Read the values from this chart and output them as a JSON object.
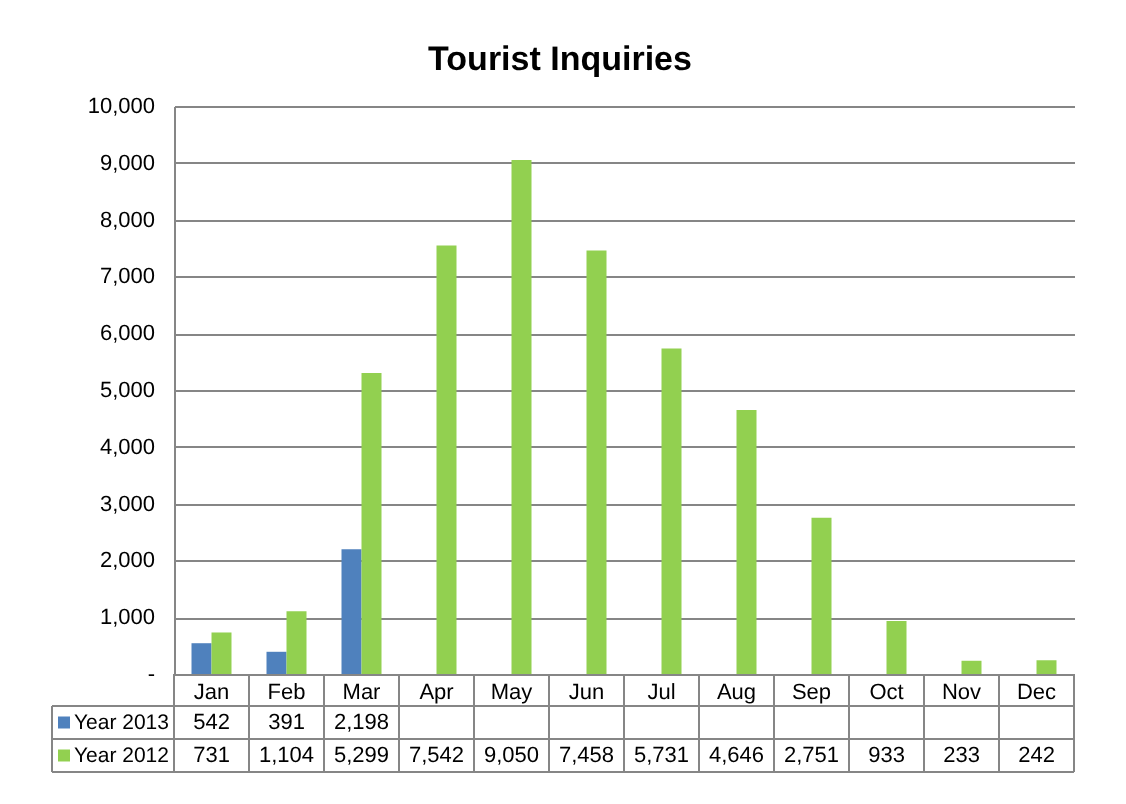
{
  "chart_data": {
    "type": "bar",
    "title": "Tourist Inquiries",
    "categories": [
      "Jan",
      "Feb",
      "Mar",
      "Apr",
      "May",
      "Jun",
      "Jul",
      "Aug",
      "Sep",
      "Oct",
      "Nov",
      "Dec"
    ],
    "series": [
      {
        "name": "Year 2013",
        "color": "#4f81bd",
        "values": [
          542,
          391,
          2198,
          null,
          null,
          null,
          null,
          null,
          null,
          null,
          null,
          null
        ],
        "value_labels": [
          "542",
          "391",
          "2,198",
          null,
          null,
          null,
          null,
          null,
          null,
          null,
          null,
          null
        ]
      },
      {
        "name": "Year 2012",
        "color": "#92d050",
        "values": [
          731,
          1104,
          5299,
          7542,
          9050,
          7458,
          5731,
          4646,
          2751,
          933,
          233,
          242
        ],
        "value_labels": [
          "731",
          "1,104",
          "5,299",
          "7,542",
          "9,050",
          "7,458",
          "5,731",
          "4,646",
          "2,751",
          "933",
          "233",
          "242"
        ]
      }
    ],
    "ylim": [
      0,
      10000
    ],
    "yticks": [
      {
        "value": 0,
        "label": "-"
      },
      {
        "value": 1000,
        "label": "1,000"
      },
      {
        "value": 2000,
        "label": "2,000"
      },
      {
        "value": 3000,
        "label": "3,000"
      },
      {
        "value": 4000,
        "label": "4,000"
      },
      {
        "value": 5000,
        "label": "5,000"
      },
      {
        "value": 6000,
        "label": "6,000"
      },
      {
        "value": 7000,
        "label": "7,000"
      },
      {
        "value": 8000,
        "label": "8,000"
      },
      {
        "value": 9000,
        "label": "9,000"
      },
      {
        "value": 10000,
        "label": "10,000"
      }
    ],
    "grid": "y",
    "legend": "bottom"
  }
}
